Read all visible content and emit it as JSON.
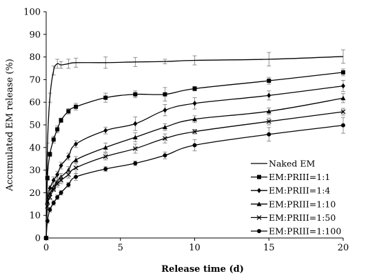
{
  "chart_data": {
    "type": "line",
    "title": "",
    "xlabel": "Release time (d)",
    "ylabel": "Accumulated EM release (%)",
    "xlim": [
      0,
      20
    ],
    "ylim": [
      0,
      100
    ],
    "x_ticks": [
      0,
      5,
      10,
      15,
      20
    ],
    "y_ticks": [
      0,
      10,
      20,
      30,
      40,
      50,
      60,
      70,
      80,
      90,
      100
    ],
    "grid": false,
    "legend_position": "bottom-right",
    "series": [
      {
        "name": "Naked EM",
        "marker": "none",
        "x": [
          0,
          0.083,
          0.25,
          0.5,
          0.75,
          1,
          1.5,
          2,
          4,
          6,
          8,
          10,
          15,
          20
        ],
        "y": [
          0,
          40,
          62,
          74,
          77,
          76.5,
          77,
          77.5,
          77.5,
          77.8,
          78,
          78.5,
          79,
          80.2
        ],
        "err": [
          0,
          2,
          2,
          2,
          2,
          1.5,
          2,
          2,
          2.5,
          2,
          1,
          2,
          3,
          3
        ]
      },
      {
        "name": "EM:PRIII=1:1",
        "marker": "square",
        "x": [
          0,
          0.083,
          0.25,
          0.5,
          0.75,
          1,
          1.5,
          2,
          4,
          6,
          8,
          10,
          15,
          20
        ],
        "y": [
          0,
          26.5,
          37,
          43.5,
          48,
          52,
          56,
          58,
          62,
          63.5,
          63.5,
          66,
          69.5,
          73.2
        ],
        "err": [
          0,
          1,
          1,
          1.5,
          1.5,
          1,
          1.2,
          1.5,
          2,
          1.5,
          3,
          1,
          1.5,
          1.5
        ]
      },
      {
        "name": "EM:PRIII=1:4",
        "marker": "diamond",
        "x": [
          0,
          0.083,
          0.25,
          0.5,
          0.75,
          1,
          1.5,
          2,
          4,
          6,
          8,
          10,
          15,
          20
        ],
        "y": [
          0,
          17,
          22,
          25.5,
          28,
          32,
          36,
          41.5,
          47.5,
          50.5,
          56.5,
          59.5,
          63,
          67.2
        ],
        "err": [
          0,
          1,
          1,
          1.5,
          1.5,
          1.5,
          1.5,
          1.5,
          1.5,
          3,
          2.5,
          2.5,
          2,
          2.5
        ]
      },
      {
        "name": "EM:PRIII=1:10",
        "marker": "triangle",
        "x": [
          0,
          0.083,
          0.25,
          0.5,
          0.75,
          1,
          1.5,
          2,
          4,
          6,
          8,
          10,
          15,
          20
        ],
        "y": [
          0,
          16,
          19.5,
          22.5,
          25,
          27,
          30,
          34.5,
          40,
          44.5,
          49,
          52.5,
          56,
          61.8
        ],
        "err": [
          0,
          1,
          1,
          1,
          1.5,
          1.5,
          1.5,
          1.5,
          2,
          2,
          1.5,
          1.5,
          1.5,
          2
        ]
      },
      {
        "name": "EM:PRIII=1:50",
        "marker": "cross",
        "x": [
          0,
          0.083,
          0.25,
          0.5,
          0.75,
          1,
          1.5,
          2,
          4,
          6,
          8,
          10,
          15,
          20
        ],
        "y": [
          0,
          14,
          18,
          21.5,
          24,
          25.5,
          28,
          31,
          36,
          39.5,
          44,
          47,
          51.5,
          55.8
        ],
        "err": [
          0,
          1,
          1,
          1,
          1.5,
          1.5,
          1.5,
          2.5,
          1.5,
          2,
          2,
          1,
          1.5,
          1.5
        ]
      },
      {
        "name": "EM:PRIII=1:100",
        "marker": "circle",
        "x": [
          0,
          0.083,
          0.25,
          0.5,
          0.75,
          1,
          1.5,
          2,
          4,
          6,
          8,
          10,
          15,
          20
        ],
        "y": [
          0,
          7.5,
          12.5,
          15.5,
          18,
          20,
          23.5,
          27,
          30.5,
          33,
          36.5,
          41,
          45.8,
          49.8
        ],
        "err": [
          0,
          1,
          1,
          1,
          1,
          1,
          1,
          1.5,
          1,
          1,
          1.5,
          2.5,
          3,
          3.5
        ]
      }
    ]
  }
}
